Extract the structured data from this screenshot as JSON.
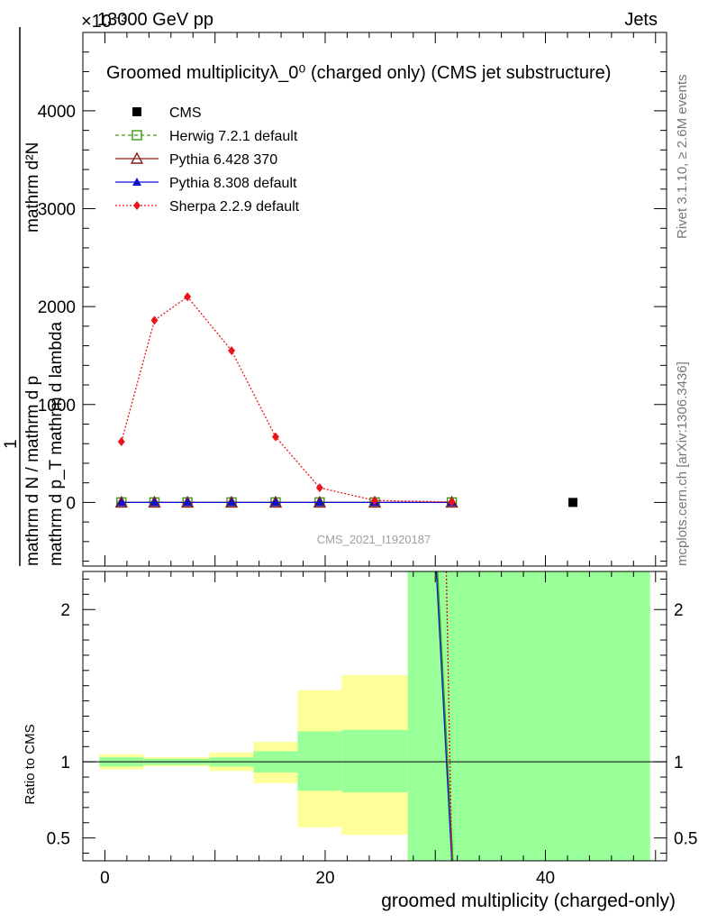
{
  "header": {
    "energy": "13000 GeV pp",
    "process": "Jets",
    "exponent": "×10⁻³"
  },
  "side": {
    "rivet": "Rivet 3.1.10, ≥ 2.6M events",
    "mcplots": "mcplots.cern.ch [arXiv:1306.3436]"
  },
  "chart_data": [
    {
      "type": "line",
      "title": "Groomed multiplicityλ_0⁰ (charged only) (CMS jet substructure)",
      "ylabel_main": "1 / (mathrm d N / mathrm d p_T mathrm d lambda) · mathrm d²N / (mathrm d p_T mathrm d lambda)",
      "ylabel_numerator": "mathrm d²N",
      "ylabel_one": "1",
      "ylabel_denominator_left": "mathrm d N / mathrm d p",
      "ylabel_denominator_right": "mathrm d p_T mathrm d lambda",
      "watermark": "CMS_2021_I1920187",
      "x_scale": {
        "min": -2,
        "max": 51
      },
      "ylim": [
        -650,
        4800
      ],
      "yticks": [
        0,
        1000,
        2000,
        3000,
        4000
      ],
      "ytick_labels": [
        "0",
        "1000",
        "2000",
        "3000",
        "4000"
      ],
      "x": [
        1.5,
        4.5,
        7.5,
        11.5,
        15.5,
        19.5,
        24.5,
        31.5
      ],
      "series": [
        {
          "name": "CMS",
          "color": "#000000",
          "marker": "square",
          "x": [
            42.5
          ],
          "values": [
            0
          ]
        },
        {
          "name": "Herwig 7.2.1 default",
          "color": "#3a9a12",
          "marker": "open-square",
          "dash": "4,3",
          "values": [
            0,
            0,
            0,
            0,
            0,
            0,
            0,
            0
          ]
        },
        {
          "name": "Pythia 6.428 370",
          "color": "#8b1a1a",
          "marker": "open-triangle",
          "dash": "",
          "values": [
            0,
            0,
            0,
            0,
            0,
            0,
            0,
            0
          ]
        },
        {
          "name": "Pythia 8.308 default",
          "color": "#1010d0",
          "marker": "triangle",
          "dash": "",
          "values": [
            0,
            0,
            0,
            0,
            0,
            0,
            0,
            0
          ]
        },
        {
          "name": "Sherpa 2.2.9 default",
          "color": "#e8141c",
          "marker": "diamond",
          "dash": "2,2",
          "values": [
            620,
            1860,
            2100,
            1550,
            670,
            150,
            20,
            5
          ]
        }
      ]
    },
    {
      "type": "area",
      "ylabel": "Ratio to CMS",
      "xlabel": "groomed multiplicity (charged-only)",
      "xlim": [
        -2,
        51
      ],
      "ylim": [
        0.35,
        2.25
      ],
      "xticks": [
        0,
        20,
        40
      ],
      "xtick_labels": [
        "0",
        "20",
        "40"
      ],
      "yticks": [
        0.5,
        1,
        2
      ],
      "ytick_labels": [
        "0.5",
        "1",
        "2"
      ],
      "bins": [
        {
          "lo": -0.5,
          "hi": 3.5,
          "yellow": [
            0.95,
            1.05
          ],
          "green": [
            0.97,
            1.03
          ]
        },
        {
          "lo": 3.5,
          "hi": 9.5,
          "yellow": [
            0.97,
            1.03
          ],
          "green": [
            0.98,
            1.02
          ]
        },
        {
          "lo": 9.5,
          "hi": 13.5,
          "yellow": [
            0.94,
            1.06
          ],
          "green": [
            0.97,
            1.03
          ]
        },
        {
          "lo": 13.5,
          "hi": 17.5,
          "yellow": [
            0.86,
            1.13
          ],
          "green": [
            0.93,
            1.07
          ]
        },
        {
          "lo": 17.5,
          "hi": 21.5,
          "yellow": [
            0.57,
            1.47
          ],
          "green": [
            0.81,
            1.2
          ]
        },
        {
          "lo": 21.5,
          "hi": 27.5,
          "yellow": [
            0.52,
            1.57
          ],
          "green": [
            0.8,
            1.21
          ]
        },
        {
          "lo": 27.5,
          "hi": 49.5,
          "yellow": [
            0.35,
            2.25
          ],
          "green": [
            0.35,
            2.25
          ]
        }
      ],
      "series": [
        {
          "name": "Pythia 8.308 default",
          "color": "#1010d0",
          "points": [
            [
              30.1,
              2.25
            ],
            [
              31.5,
              0.35
            ]
          ]
        },
        {
          "name": "Herwig 7.2.1 default",
          "color": "#3a9a12",
          "points": [
            [
              30.2,
              2.25
            ],
            [
              31.6,
              0.35
            ]
          ]
        },
        {
          "name": "Sherpa 2.2.9 default",
          "color": "#e8141c",
          "points": [
            [
              31.0,
              2.25
            ],
            [
              31.5,
              0.35
            ]
          ]
        }
      ]
    }
  ]
}
